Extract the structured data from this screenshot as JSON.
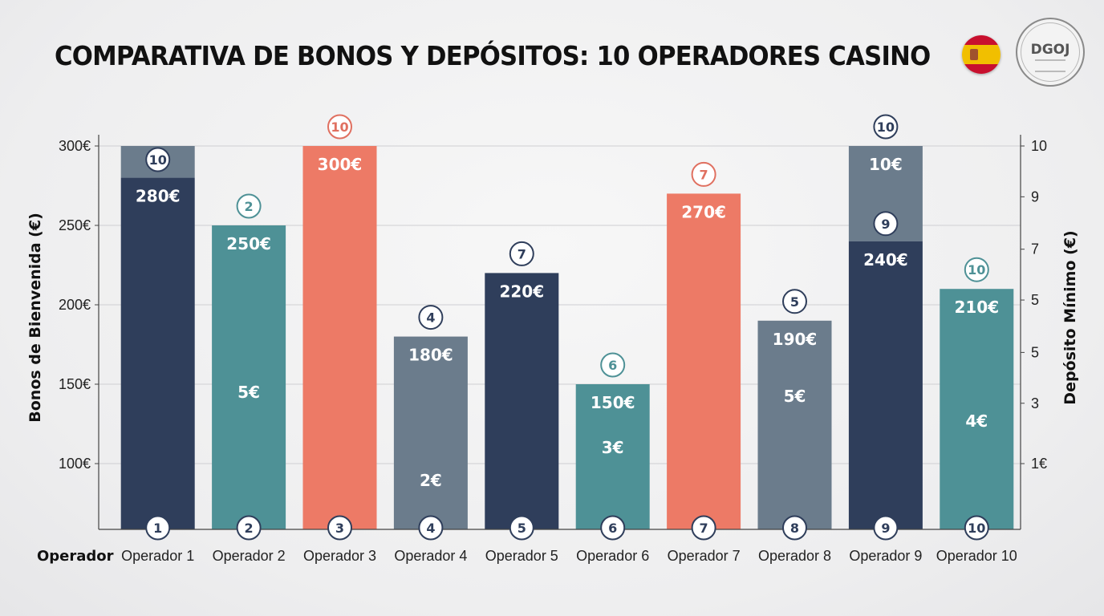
{
  "title": "COMPARATIVA DE BONOS Y DEPÓSITOS: 10 OPERADORES CASINO",
  "logos": {
    "flag": "spain-flag",
    "seal": "DGOJ"
  },
  "colors": {
    "navy": "#2f3e5b",
    "teal": "#4e9196",
    "coral": "#ed7a66",
    "slate": "#6b7c8c"
  },
  "chart_data": {
    "type": "bar",
    "xlabel": "Operador",
    "ylabel": "Bonos de Bienvenida (€)",
    "y2label": "Depósito Mínimo (€)",
    "ylim": [
      60,
      300
    ],
    "yticks": [
      "300€",
      "250€",
      "200€",
      "150€",
      "100€"
    ],
    "yticks_values": [
      300,
      250,
      200,
      150,
      100
    ],
    "y2ticks": [
      "10",
      "9",
      "7",
      "5",
      "5",
      "3",
      "1€"
    ],
    "y2ticks_values": [
      300,
      268,
      235,
      203,
      170,
      138,
      100
    ],
    "grid": true,
    "categories": [
      "Operador 1",
      "Operador 2",
      "Operador 3",
      "Operador 4",
      "Operador 5",
      "Operador 6",
      "Operador 7",
      "Operador 8",
      "Operador 9",
      "Operador 10"
    ],
    "values": [
      280,
      250,
      300,
      180,
      220,
      150,
      270,
      190,
      240,
      210
    ],
    "value_labels": [
      "280€",
      "250€",
      "300€",
      "180€",
      "220€",
      "150€",
      "270€",
      "190€",
      "240€",
      "210€"
    ],
    "deposit_labels": [
      "",
      "5€",
      "",
      "2€",
      "",
      "3€",
      "",
      "5€",
      "10€",
      "4€"
    ],
    "cap_values": [
      300,
      null,
      null,
      null,
      null,
      null,
      null,
      null,
      300,
      null
    ],
    "top_badges": [
      "10",
      "2",
      "10",
      "4",
      "7",
      "6",
      "7",
      "5",
      "10",
      "10"
    ],
    "inner_badges": [
      null,
      null,
      null,
      null,
      null,
      null,
      null,
      null,
      "9",
      null
    ],
    "bottom_badges": [
      "1",
      "2",
      "3",
      "4",
      "5",
      "6",
      "7",
      "8",
      "9",
      "10"
    ],
    "bar_colors": [
      "navy",
      "teal",
      "coral",
      "slate",
      "navy",
      "teal",
      "coral",
      "slate",
      "navy",
      "teal"
    ]
  }
}
